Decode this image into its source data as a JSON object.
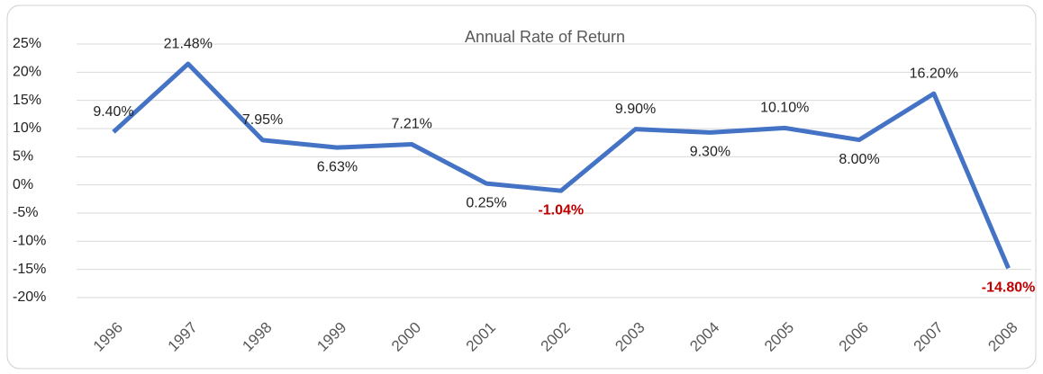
{
  "chart_data": {
    "type": "line",
    "title": "Annual Rate of Return",
    "categories": [
      "1996",
      "1997",
      "1998",
      "1999",
      "2000",
      "2001",
      "2002",
      "2003",
      "2004",
      "2005",
      "2006",
      "2007",
      "2008"
    ],
    "series": [
      {
        "name": "Annual Rate of Return",
        "color": "#4472c4",
        "values": [
          9.4,
          21.48,
          7.95,
          6.63,
          7.21,
          0.25,
          -1.04,
          9.9,
          9.3,
          10.1,
          8.0,
          16.2,
          -14.8
        ],
        "value_labels": [
          "9.40%",
          "21.48%",
          "7.95%",
          "6.63%",
          "7.21%",
          "0.25%",
          "-1.04%",
          "9.90%",
          "9.30%",
          "10.10%",
          "8.00%",
          "16.20%",
          "-14.80%"
        ]
      }
    ],
    "negative_label_color": "#c00000",
    "ylim": [
      -20,
      25
    ],
    "yticks": [
      {
        "value": -20,
        "label": "-20%"
      },
      {
        "value": -15,
        "label": "-15%"
      },
      {
        "value": -10,
        "label": "-10%"
      },
      {
        "value": -5,
        "label": "-5%"
      },
      {
        "value": 0,
        "label": "0%"
      },
      {
        "value": 5,
        "label": "5%"
      },
      {
        "value": 10,
        "label": "10%"
      },
      {
        "value": 15,
        "label": "15%"
      },
      {
        "value": 20,
        "label": "20%"
      },
      {
        "value": 25,
        "label": "25%"
      }
    ],
    "grid": true
  }
}
